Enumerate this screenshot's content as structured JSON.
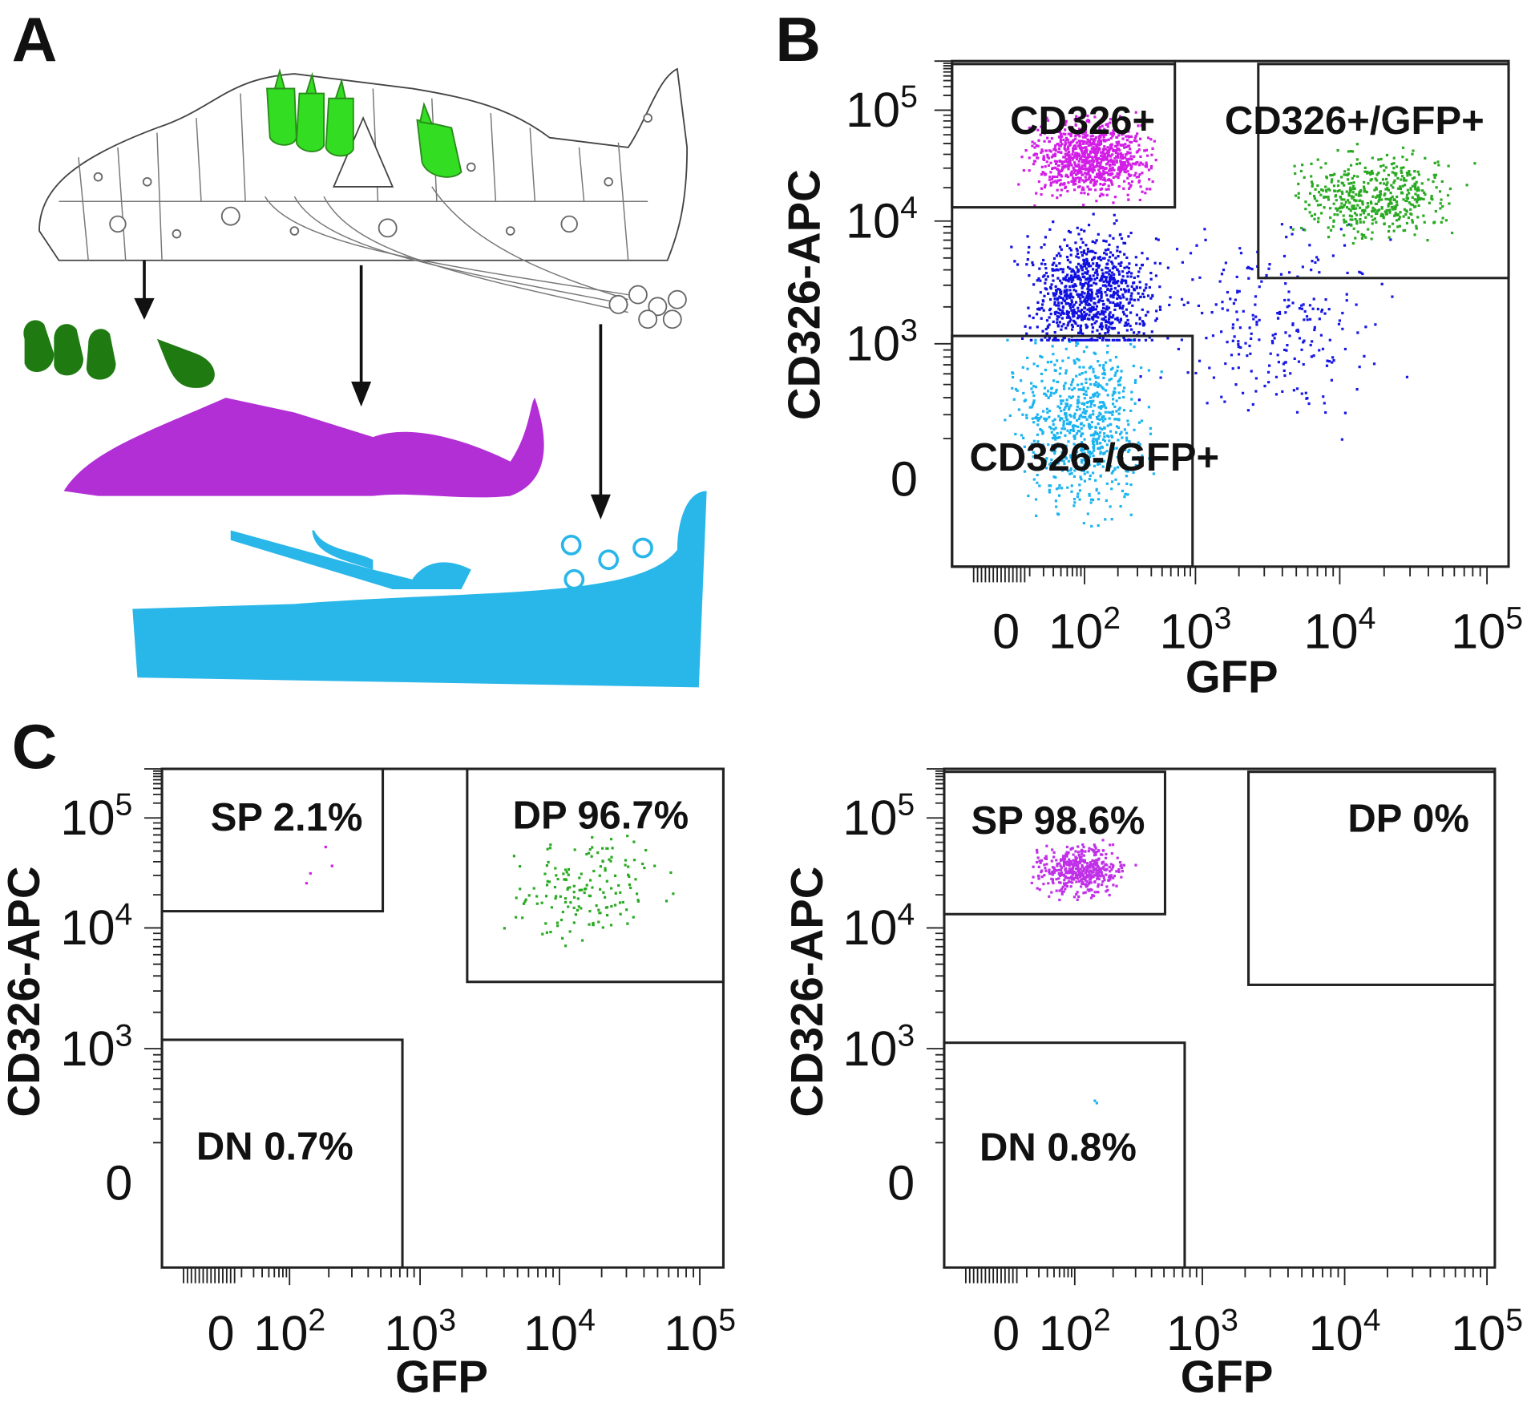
{
  "panel_a": {
    "label": "A"
  },
  "panel_b": {
    "label": "B",
    "plot": {
      "x_label": "GFP",
      "y_label": "CD326-APC",
      "xticks": [
        "0",
        {
          "base": "10",
          "exp": "2"
        },
        {
          "base": "10",
          "exp": "3"
        },
        {
          "base": "10",
          "exp": "4"
        },
        {
          "base": "10",
          "exp": "5"
        }
      ],
      "yticks": [
        "0",
        {
          "base": "10",
          "exp": "3"
        },
        {
          "base": "10",
          "exp": "4"
        },
        {
          "base": "10",
          "exp": "5"
        }
      ],
      "gates": [
        "CD326+",
        "CD326+/GFP+",
        "CD326-/GFP+"
      ]
    }
  },
  "panel_c": {
    "label": "C",
    "plots": [
      {
        "x_label": "GFP",
        "y_label": "CD326-APC",
        "xticks": [
          "0",
          {
            "base": "10",
            "exp": "2"
          },
          {
            "base": "10",
            "exp": "3"
          },
          {
            "base": "10",
            "exp": "4"
          },
          {
            "base": "10",
            "exp": "5"
          }
        ],
        "yticks": [
          "0",
          {
            "base": "10",
            "exp": "3"
          },
          {
            "base": "10",
            "exp": "4"
          },
          {
            "base": "10",
            "exp": "5"
          }
        ],
        "gates": [
          "SP 2.1%",
          "DP 96.7%",
          "DN 0.7%"
        ]
      },
      {
        "x_label": "GFP",
        "y_label": "CD326-APC",
        "xticks": [
          "0",
          {
            "base": "10",
            "exp": "2"
          },
          {
            "base": "10",
            "exp": "3"
          },
          {
            "base": "10",
            "exp": "4"
          },
          {
            "base": "10",
            "exp": "5"
          }
        ],
        "yticks": [
          "0",
          {
            "base": "10",
            "exp": "3"
          },
          {
            "base": "10",
            "exp": "4"
          },
          {
            "base": "10",
            "exp": "5"
          }
        ],
        "gates": [
          "SP 98.6%",
          "DP 0%",
          "DN 0.8%"
        ]
      }
    ]
  }
}
